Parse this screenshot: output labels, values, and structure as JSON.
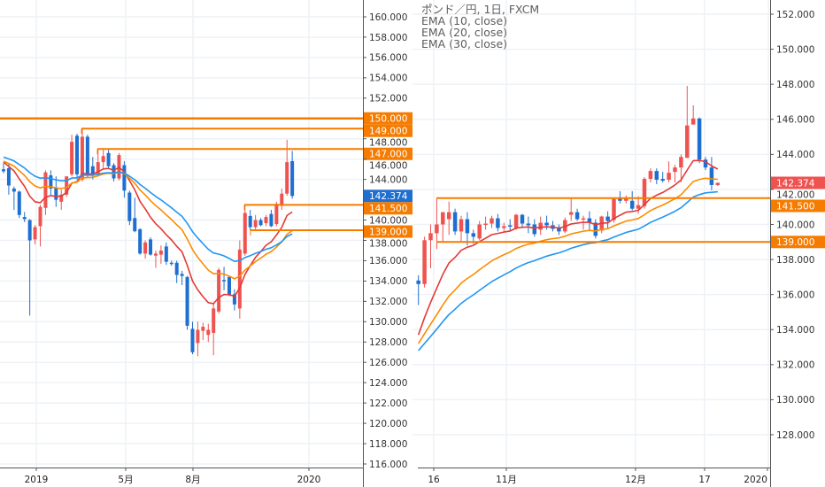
{
  "legend": {
    "symbol": "ポンド／円, 1日, FXCM",
    "indicators": [
      "EMA (10, close)",
      "EMA (20, close)",
      "EMA (30, close)"
    ]
  },
  "colors": {
    "up": "#ef5350",
    "down": "#1e6fd0",
    "ema10": "#e53935",
    "ema20": "#fb8c00",
    "ema30": "#2196f3",
    "level_line": "#f57c00",
    "grid": "#eef2f6"
  },
  "chart_data": [
    {
      "type": "candlestick",
      "name": "left-pane",
      "ylim": [
        116,
        160
      ],
      "yticks": [
        "160.000",
        "158.000",
        "156.000",
        "154.000",
        "152.000",
        "148.000",
        "146.000",
        "144.000",
        "140.000",
        "138.000",
        "136.000",
        "134.000",
        "132.000",
        "130.000",
        "128.000",
        "126.000",
        "124.000",
        "122.000",
        "120.000",
        "118.000",
        "116.000"
      ],
      "xticks": [
        "2019",
        "5月",
        "8月",
        "2020"
      ],
      "last_price": "142.374",
      "levels": [
        {
          "price": 150.0,
          "label": "150.000"
        },
        {
          "price": 149.0,
          "label": "149.000"
        },
        {
          "price": 147.0,
          "label": "147.000"
        },
        {
          "price": 141.5,
          "label": "141.500"
        },
        {
          "price": 139.0,
          "label": "139.000"
        }
      ],
      "ema": [
        {
          "period": 10,
          "start": 145.7
        },
        {
          "period": 20,
          "start": 145.8
        },
        {
          "period": 30,
          "start": 146.2
        }
      ],
      "ohlc": [
        [
          145.0,
          145.6,
          144.6,
          144.8
        ],
        [
          145.1,
          145.5,
          142.5,
          143.4
        ],
        [
          143.1,
          143.3,
          141.0,
          142.8
        ],
        [
          142.8,
          142.9,
          140.2,
          140.5
        ],
        [
          140.3,
          140.8,
          139.8,
          140.1
        ],
        [
          140.0,
          140.1,
          130.6,
          138.0
        ],
        [
          138.1,
          139.5,
          137.6,
          139.3
        ],
        [
          139.4,
          141.5,
          137.4,
          141.3
        ],
        [
          141.2,
          144.9,
          140.5,
          144.7
        ],
        [
          144.4,
          144.9,
          142.4,
          143.1
        ],
        [
          143.2,
          144.3,
          141.3,
          142.0
        ],
        [
          141.8,
          143.0,
          141.0,
          142.5
        ],
        [
          142.5,
          144.3,
          142.3,
          144.3
        ],
        [
          144.5,
          148.4,
          144.3,
          147.7
        ],
        [
          148.3,
          148.5,
          144.0,
          144.5
        ],
        [
          144.0,
          149.0,
          143.8,
          148.2
        ],
        [
          148.2,
          148.4,
          144.2,
          144.4
        ],
        [
          145.3,
          146.2,
          144.0,
          144.5
        ],
        [
          144.5,
          147.0,
          144.3,
          145.7
        ],
        [
          145.7,
          147.0,
          145.0,
          146.3
        ],
        [
          146.6,
          147.0,
          145.0,
          145.3
        ],
        [
          145.4,
          145.6,
          143.8,
          144.1
        ],
        [
          144.1,
          146.6,
          143.9,
          146.4
        ],
        [
          145.4,
          145.8,
          142.2,
          142.9
        ],
        [
          142.7,
          142.9,
          139.5,
          139.9
        ],
        [
          140.2,
          142.2,
          138.8,
          138.9
        ],
        [
          139.1,
          139.2,
          136.6,
          136.7
        ],
        [
          136.7,
          138.0,
          136.2,
          137.8
        ],
        [
          138.1,
          138.3,
          136.5,
          136.6
        ],
        [
          136.5,
          137.0,
          135.3,
          136.7
        ],
        [
          136.6,
          137.5,
          135.7,
          137.0
        ],
        [
          137.4,
          137.8,
          135.6,
          135.9
        ],
        [
          135.8,
          136.0,
          135.5,
          135.7
        ],
        [
          135.8,
          136.0,
          133.8,
          134.6
        ],
        [
          134.7,
          135.0,
          133.6,
          134.5
        ],
        [
          134.4,
          134.5,
          129.2,
          129.6
        ],
        [
          129.3,
          130.0,
          126.8,
          127.0
        ],
        [
          127.9,
          130.0,
          126.6,
          129.2
        ],
        [
          129.1,
          129.9,
          128.2,
          129.5
        ],
        [
          128.7,
          129.8,
          128.0,
          129.2
        ],
        [
          128.9,
          131.8,
          126.7,
          131.3
        ],
        [
          131.0,
          135.3,
          130.8,
          135.1
        ],
        [
          134.1,
          135.4,
          133.1,
          134.0
        ],
        [
          134.4,
          134.5,
          132.5,
          132.6
        ],
        [
          132.7,
          133.2,
          131.1,
          131.7
        ],
        [
          131.3,
          138.0,
          130.3,
          137.1
        ],
        [
          136.7,
          141.5,
          136.5,
          140.7
        ],
        [
          140.4,
          141.0,
          139.0,
          139.3
        ],
        [
          139.3,
          140.5,
          139.0,
          140.0
        ],
        [
          140.0,
          140.2,
          139.4,
          139.5
        ],
        [
          139.7,
          140.5,
          139.4,
          140.3
        ],
        [
          140.6,
          141.0,
          139.3,
          139.4
        ],
        [
          139.6,
          141.8,
          139.4,
          141.6
        ],
        [
          141.4,
          143.1,
          141.0,
          142.6
        ],
        [
          142.6,
          147.9,
          142.4,
          145.7
        ],
        [
          145.8,
          146.8,
          142.1,
          142.374
        ]
      ]
    },
    {
      "type": "candlestick",
      "name": "right-pane",
      "ylim": [
        126.6,
        153.0
      ],
      "yticks": [
        "152.000",
        "150.000",
        "148.000",
        "146.000",
        "144.000",
        "142.000",
        "140.000",
        "138.000",
        "136.000",
        "134.000",
        "132.000",
        "130.000",
        "128.000"
      ],
      "xticks": [
        "16",
        "11月",
        "12月",
        "17",
        "2020"
      ],
      "last_price": "142.374",
      "levels": [
        {
          "price": 141.5,
          "label": "141.500"
        },
        {
          "price": 139.0,
          "label": "139.000"
        }
      ],
      "ema": [
        {
          "period": 10,
          "start": 133.7
        },
        {
          "period": 20,
          "start": 133.2
        },
        {
          "period": 30,
          "start": 132.8
        }
      ],
      "ohlc": [
        [
          136.8,
          137.1,
          135.4,
          136.6
        ],
        [
          136.6,
          139.3,
          136.4,
          139.1
        ],
        [
          139.1,
          140.0,
          137.5,
          139.5
        ],
        [
          139.5,
          141.5,
          138.6,
          140.0
        ],
        [
          140.0,
          140.7,
          139.0,
          140.7
        ],
        [
          140.3,
          141.3,
          139.4,
          140.7
        ],
        [
          140.7,
          140.9,
          139.4,
          139.6
        ],
        [
          139.6,
          140.5,
          139.0,
          140.3
        ],
        [
          140.3,
          140.7,
          138.8,
          139.5
        ],
        [
          139.5,
          139.7,
          138.9,
          139.3
        ],
        [
          139.2,
          140.2,
          139.1,
          140.0
        ],
        [
          140.0,
          140.45,
          139.7,
          140.05
        ],
        [
          140.05,
          140.5,
          139.8,
          140.35
        ],
        [
          140.35,
          140.6,
          139.6,
          139.8
        ],
        [
          139.8,
          140.1,
          139.6,
          139.9
        ],
        [
          139.95,
          140.3,
          139.6,
          139.9
        ],
        [
          139.8,
          140.6,
          139.7,
          140.55
        ],
        [
          140.55,
          140.6,
          139.8,
          140.05
        ],
        [
          140.05,
          140.45,
          139.5,
          139.95
        ],
        [
          140.0,
          140.3,
          139.3,
          139.45
        ],
        [
          139.7,
          140.45,
          139.4,
          140.1
        ],
        [
          140.1,
          140.5,
          139.7,
          139.95
        ],
        [
          139.95,
          140.2,
          139.6,
          139.75
        ],
        [
          139.8,
          140.0,
          139.4,
          139.6
        ],
        [
          139.6,
          140.4,
          139.5,
          140.25
        ],
        [
          140.55,
          141.5,
          140.2,
          140.7
        ],
        [
          140.7,
          140.9,
          140.2,
          140.3
        ],
        [
          140.3,
          140.5,
          139.7,
          140.35
        ],
        [
          140.35,
          140.75,
          139.7,
          140.1
        ],
        [
          140.1,
          140.3,
          139.2,
          139.35
        ],
        [
          139.65,
          140.5,
          139.5,
          140.45
        ],
        [
          140.45,
          140.75,
          139.8,
          140.2
        ],
        [
          140.25,
          141.5,
          140.1,
          141.45
        ],
        [
          141.5,
          141.9,
          141.2,
          141.35
        ],
        [
          141.35,
          141.65,
          141.2,
          141.5
        ],
        [
          141.35,
          141.9,
          140.8,
          140.9
        ],
        [
          140.9,
          141.6,
          140.6,
          141.1
        ],
        [
          141.05,
          142.7,
          140.9,
          142.6
        ],
        [
          142.6,
          143.2,
          142.4,
          143.05
        ],
        [
          143.05,
          143.2,
          142.3,
          142.55
        ],
        [
          142.6,
          143.0,
          142.4,
          142.5
        ],
        [
          142.55,
          143.6,
          142.4,
          142.95
        ],
        [
          143.0,
          143.4,
          142.4,
          143.25
        ],
        [
          143.25,
          144.0,
          142.4,
          143.85
        ],
        [
          143.8,
          147.9,
          143.8,
          145.65
        ],
        [
          145.7,
          146.8,
          145.7,
          146.05
        ],
        [
          146.05,
          146.1,
          143.5,
          143.7
        ],
        [
          143.7,
          143.85,
          143.1,
          143.25
        ],
        [
          143.25,
          143.85,
          141.95,
          142.25
        ],
        [
          142.25,
          142.4,
          142.2,
          142.374
        ]
      ]
    }
  ]
}
